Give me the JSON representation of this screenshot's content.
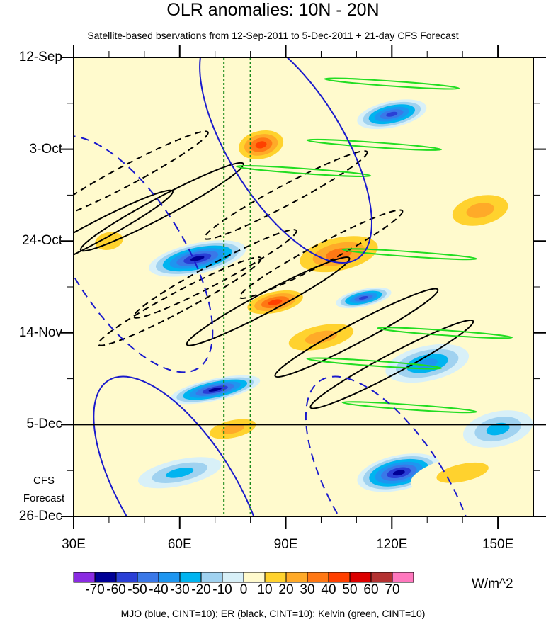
{
  "chart_data": {
    "type": "heatmap",
    "title": "OLR anomalies: 10N - 20N",
    "subtitle": "Satellite-based bservations from 12-Sep-2011 to 5-Dec-2011 + 21-day CFS Forecast",
    "x_range_deg": [
      30,
      160
    ],
    "x_ticks": [
      {
        "value": 30,
        "label": "30E"
      },
      {
        "value": 60,
        "label": "60E"
      },
      {
        "value": 90,
        "label": "90E"
      },
      {
        "value": 120,
        "label": "120E"
      },
      {
        "value": 150,
        "label": "150E"
      }
    ],
    "y_range_days_after_start": [
      0,
      105
    ],
    "y_ticks": [
      {
        "value": 0,
        "label": "12-Sep"
      },
      {
        "value": 21,
        "label": "3-Oct"
      },
      {
        "value": 42,
        "label": "24-Oct"
      },
      {
        "value": 63,
        "label": "14-Nov"
      },
      {
        "value": 84,
        "label": "5-Dec"
      },
      {
        "value": 105,
        "label": "26-Dec"
      }
    ],
    "forecast_start_label": "5-Dec",
    "forecast_note": [
      "CFS",
      "Forecast"
    ],
    "reference_lines_lon": [
      72.5,
      80
    ],
    "colorbar": {
      "levels": [
        "-70",
        "-60",
        "-50",
        "-40",
        "-30",
        "-20",
        "-10",
        "0",
        "10",
        "20",
        "30",
        "40",
        "50",
        "60",
        "70"
      ],
      "colors": [
        "#8a2be2",
        "#000096",
        "#2a3fd6",
        "#3a78e8",
        "#1e96f0",
        "#00b4f0",
        "#a0d2f0",
        "#d8f0f8",
        "#fffacd",
        "#ffd22e",
        "#ffaa28",
        "#ff7814",
        "#ff4000",
        "#dc0000",
        "#b43232",
        "#ff78be"
      ],
      "units": "W/m^2"
    },
    "contours_caption": "MJO (blue, CINT=10); ER (black, CINT=10); Kelvin (green, CINT=10)",
    "anomaly_features": [
      {
        "lon": 65,
        "day": 46,
        "value": -70,
        "rx": 14,
        "ry": 3.5
      },
      {
        "lon": 70,
        "day": 76,
        "value": -70,
        "rx": 13,
        "ry": 2.5
      },
      {
        "lon": 122,
        "day": 95,
        "value": -70,
        "rx": 12,
        "ry": 4
      },
      {
        "lon": 120,
        "day": 13,
        "value": -60,
        "rx": 10,
        "ry": 3
      },
      {
        "lon": 112,
        "day": 55,
        "value": -60,
        "rx": 8,
        "ry": 2
      },
      {
        "lon": 130,
        "day": 70,
        "value": -40,
        "rx": 12,
        "ry": 4
      },
      {
        "lon": 60,
        "day": 95,
        "value": -30,
        "rx": 12,
        "ry": 3
      },
      {
        "lon": 150,
        "day": 85,
        "value": -30,
        "rx": 10,
        "ry": 4
      },
      {
        "lon": 83,
        "day": 20,
        "value": 50,
        "rx": 8,
        "ry": 4
      },
      {
        "lon": 87,
        "day": 56,
        "value": 50,
        "rx": 10,
        "ry": 3
      },
      {
        "lon": 105,
        "day": 45,
        "value": 40,
        "rx": 15,
        "ry": 5
      },
      {
        "lon": 100,
        "day": 64,
        "value": 30,
        "rx": 14,
        "ry": 4
      },
      {
        "lon": 145,
        "day": 35,
        "value": 30,
        "rx": 12,
        "ry": 5
      },
      {
        "lon": 75,
        "day": 85,
        "value": 30,
        "rx": 10,
        "ry": 3
      },
      {
        "lon": 140,
        "day": 95,
        "value": 20,
        "rx": 15,
        "ry": 4
      },
      {
        "lon": 40,
        "day": 42,
        "value": 20,
        "rx": 8,
        "ry": 4
      }
    ]
  }
}
